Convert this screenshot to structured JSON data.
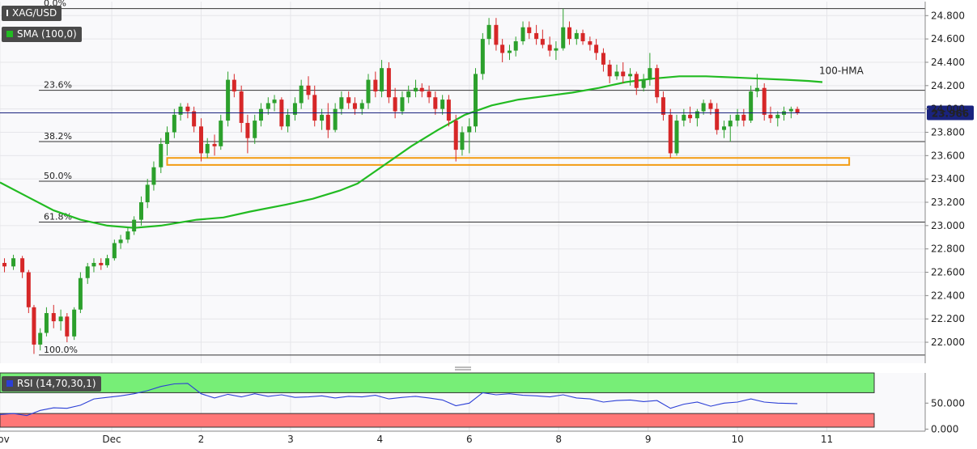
{
  "legend": {
    "symbol": "XAG/USD",
    "sma_label": "SMA (100,0)",
    "rsi_label": "RSI (14,70,30,1)"
  },
  "colors": {
    "bull": "#2ca02c",
    "bear": "#d62728",
    "sma": "#22bb22",
    "rsi_line": "#2b3fd6",
    "overbought_zone": "#77ee77",
    "oversold_zone": "#ff7777",
    "support_box": "#f39c12",
    "price_line": "#1a237e",
    "price_badge": "#1a237e"
  },
  "chart_data": [
    {
      "type": "candlestick",
      "symbol": "XAG/USD",
      "yticks": [
        22.0,
        22.2,
        22.4,
        22.6,
        22.8,
        23.0,
        23.2,
        23.4,
        23.6,
        23.8,
        24.0,
        24.2,
        24.4,
        24.6,
        24.8
      ],
      "ytick_labels": [
        "22.000",
        "22.200",
        "22.400",
        "22.600",
        "22.800",
        "23.000",
        "23.200",
        "23.400",
        "23.600",
        "23.800",
        "24.000",
        "24.200",
        "24.400",
        "24.600",
        "24.800"
      ],
      "ylim": [
        21.82,
        24.92
      ],
      "xlim": [
        0.0,
        10.35
      ],
      "xticks": [
        {
          "x": 0.0,
          "label": "Nov"
        },
        {
          "x": 1.25,
          "label": "Dec"
        },
        {
          "x": 2.25,
          "label": "2"
        },
        {
          "x": 3.25,
          "label": "3"
        },
        {
          "x": 4.25,
          "label": "4"
        },
        {
          "x": 5.25,
          "label": "6"
        },
        {
          "x": 6.25,
          "label": "8"
        },
        {
          "x": 7.25,
          "label": "9"
        },
        {
          "x": 8.25,
          "label": "10"
        },
        {
          "x": 9.25,
          "label": "11"
        }
      ],
      "current_price": 23.966,
      "current_price_label": "23.966",
      "fibonacci": [
        {
          "label": "0.0%",
          "value": 24.86
        },
        {
          "label": "23.6%",
          "value": 24.16
        },
        {
          "label": "38.2%",
          "value": 23.72
        },
        {
          "label": "50.0%",
          "value": 23.38
        },
        {
          "label": "61.8%",
          "value": 23.03
        },
        {
          "label": "100.0%",
          "value": 21.89
        }
      ],
      "support_zone": {
        "x_start": 1.87,
        "x_end": 9.5,
        "low": 23.52,
        "high": 23.58
      },
      "sma": {
        "name": "100-HMA",
        "points": [
          [
            0.0,
            23.37
          ],
          [
            0.3,
            23.25
          ],
          [
            0.6,
            23.13
          ],
          [
            0.9,
            23.05
          ],
          [
            1.2,
            23.0
          ],
          [
            1.5,
            22.98
          ],
          [
            1.8,
            23.0
          ],
          [
            2.2,
            23.05
          ],
          [
            2.5,
            23.07
          ],
          [
            2.8,
            23.12
          ],
          [
            3.2,
            23.18
          ],
          [
            3.5,
            23.23
          ],
          [
            3.8,
            23.3
          ],
          [
            4.0,
            23.36
          ],
          [
            4.3,
            23.52
          ],
          [
            4.6,
            23.68
          ],
          [
            4.9,
            23.82
          ],
          [
            5.2,
            23.95
          ],
          [
            5.5,
            24.03
          ],
          [
            5.8,
            24.08
          ],
          [
            6.1,
            24.11
          ],
          [
            6.4,
            24.14
          ],
          [
            6.7,
            24.18
          ],
          [
            7.0,
            24.23
          ],
          [
            7.3,
            24.26
          ],
          [
            7.6,
            24.28
          ],
          [
            7.9,
            24.28
          ],
          [
            8.2,
            24.27
          ],
          [
            8.5,
            24.26
          ],
          [
            8.8,
            24.25
          ],
          [
            9.05,
            24.24
          ],
          [
            9.2,
            24.23
          ]
        ]
      },
      "ohlc": [
        [
          0.05,
          22.68,
          22.72,
          22.6,
          22.65
        ],
        [
          0.15,
          22.65,
          22.75,
          22.62,
          22.72
        ],
        [
          0.25,
          22.72,
          22.74,
          22.55,
          22.6
        ],
        [
          0.32,
          22.6,
          22.62,
          22.25,
          22.3
        ],
        [
          0.38,
          22.3,
          22.32,
          21.9,
          21.98
        ],
        [
          0.45,
          21.98,
          22.12,
          21.93,
          22.08
        ],
        [
          0.52,
          22.08,
          22.3,
          22.05,
          22.25
        ],
        [
          0.6,
          22.25,
          22.32,
          22.12,
          22.18
        ],
        [
          0.68,
          22.18,
          22.28,
          22.1,
          22.22
        ],
        [
          0.75,
          22.22,
          22.25,
          22.0,
          22.05
        ],
        [
          0.83,
          22.05,
          22.3,
          22.02,
          22.28
        ],
        [
          0.9,
          22.28,
          22.6,
          22.25,
          22.55
        ],
        [
          0.98,
          22.55,
          22.68,
          22.5,
          22.65
        ],
        [
          1.05,
          22.65,
          22.72,
          22.6,
          22.68
        ],
        [
          1.13,
          22.68,
          22.72,
          22.62,
          22.66
        ],
        [
          1.2,
          22.66,
          22.75,
          22.64,
          22.72
        ],
        [
          1.28,
          22.72,
          22.88,
          22.7,
          22.85
        ],
        [
          1.35,
          22.85,
          22.92,
          22.8,
          22.88
        ],
        [
          1.43,
          22.88,
          22.98,
          22.85,
          22.95
        ],
        [
          1.5,
          22.95,
          23.08,
          22.92,
          23.05
        ],
        [
          1.58,
          23.05,
          23.25,
          23.0,
          23.2
        ],
        [
          1.65,
          23.2,
          23.4,
          23.15,
          23.35
        ],
        [
          1.72,
          23.35,
          23.55,
          23.3,
          23.5
        ],
        [
          1.8,
          23.5,
          23.75,
          23.45,
          23.7
        ],
        [
          1.87,
          23.7,
          23.85,
          23.6,
          23.8
        ],
        [
          1.95,
          23.8,
          24.0,
          23.75,
          23.95
        ],
        [
          2.02,
          23.95,
          24.05,
          23.9,
          24.02
        ],
        [
          2.1,
          24.02,
          24.05,
          23.92,
          23.98
        ],
        [
          2.17,
          23.98,
          24.02,
          23.8,
          23.85
        ],
        [
          2.25,
          23.85,
          23.92,
          23.55,
          23.62
        ],
        [
          2.32,
          23.62,
          23.75,
          23.58,
          23.7
        ],
        [
          2.4,
          23.7,
          23.78,
          23.6,
          23.68
        ],
        [
          2.47,
          23.68,
          23.95,
          23.65,
          23.9
        ],
        [
          2.55,
          23.9,
          24.32,
          23.85,
          24.25
        ],
        [
          2.62,
          24.25,
          24.3,
          24.1,
          24.15
        ],
        [
          2.7,
          24.15,
          24.2,
          23.8,
          23.88
        ],
        [
          2.77,
          23.88,
          23.95,
          23.62,
          23.75
        ],
        [
          2.85,
          23.75,
          23.95,
          23.7,
          23.9
        ],
        [
          2.92,
          23.9,
          24.05,
          23.85,
          24.0
        ],
        [
          3.0,
          24.0,
          24.1,
          23.95,
          24.05
        ],
        [
          3.07,
          24.05,
          24.12,
          23.98,
          24.08
        ],
        [
          3.15,
          24.08,
          24.1,
          23.82,
          23.85
        ],
        [
          3.22,
          23.85,
          24.0,
          23.8,
          23.95
        ],
        [
          3.3,
          23.95,
          24.1,
          23.9,
          24.05
        ],
        [
          3.37,
          24.05,
          24.25,
          24.0,
          24.2
        ],
        [
          3.45,
          24.2,
          24.28,
          24.08,
          24.12
        ],
        [
          3.52,
          24.12,
          24.2,
          23.85,
          23.9
        ],
        [
          3.6,
          23.9,
          24.0,
          23.82,
          23.95
        ],
        [
          3.67,
          23.95,
          24.05,
          23.75,
          23.82
        ],
        [
          3.75,
          23.82,
          24.05,
          23.8,
          24.0
        ],
        [
          3.82,
          24.0,
          24.15,
          23.95,
          24.1
        ],
        [
          3.9,
          24.1,
          24.15,
          24.0,
          24.05
        ],
        [
          3.97,
          24.05,
          24.1,
          23.95,
          24.0
        ],
        [
          4.05,
          24.0,
          24.08,
          23.95,
          24.05
        ],
        [
          4.12,
          24.05,
          24.3,
          24.0,
          24.25
        ],
        [
          4.2,
          24.25,
          24.32,
          24.1,
          24.15
        ],
        [
          4.27,
          24.15,
          24.42,
          24.1,
          24.35
        ],
        [
          4.35,
          24.35,
          24.4,
          24.05,
          24.1
        ],
        [
          4.42,
          24.1,
          24.18,
          23.92,
          23.98
        ],
        [
          4.5,
          23.98,
          24.15,
          23.95,
          24.1
        ],
        [
          4.57,
          24.1,
          24.2,
          24.05,
          24.15
        ],
        [
          4.65,
          24.15,
          24.25,
          24.1,
          24.18
        ],
        [
          4.72,
          24.18,
          24.22,
          24.1,
          24.15
        ],
        [
          4.8,
          24.15,
          24.2,
          24.05,
          24.1
        ],
        [
          4.87,
          24.1,
          24.15,
          23.95,
          24.0
        ],
        [
          4.95,
          24.0,
          24.12,
          23.95,
          24.08
        ],
        [
          5.02,
          24.08,
          24.12,
          23.85,
          23.9
        ],
        [
          5.1,
          23.9,
          23.95,
          23.55,
          23.65
        ],
        [
          5.17,
          23.65,
          23.85,
          23.6,
          23.8
        ],
        [
          5.25,
          23.8,
          23.92,
          23.62,
          23.85
        ],
        [
          5.32,
          23.85,
          24.35,
          23.8,
          24.3
        ],
        [
          5.4,
          24.3,
          24.65,
          24.25,
          24.6
        ],
        [
          5.47,
          24.6,
          24.78,
          24.55,
          24.72
        ],
        [
          5.55,
          24.72,
          24.78,
          24.5,
          24.55
        ],
        [
          5.62,
          24.55,
          24.6,
          24.4,
          24.48
        ],
        [
          5.7,
          24.48,
          24.55,
          24.42,
          24.5
        ],
        [
          5.77,
          24.5,
          24.62,
          24.45,
          24.58
        ],
        [
          5.85,
          24.58,
          24.75,
          24.55,
          24.7
        ],
        [
          5.92,
          24.7,
          24.75,
          24.6,
          24.65
        ],
        [
          6.0,
          24.65,
          24.72,
          24.55,
          24.6
        ],
        [
          6.07,
          24.6,
          24.68,
          24.52,
          24.55
        ],
        [
          6.15,
          24.55,
          24.62,
          24.45,
          24.5
        ],
        [
          6.22,
          24.5,
          24.58,
          24.42,
          24.52
        ],
        [
          6.3,
          24.52,
          24.86,
          24.5,
          24.7
        ],
        [
          6.37,
          24.7,
          24.75,
          24.55,
          24.6
        ],
        [
          6.45,
          24.6,
          24.68,
          24.55,
          24.65
        ],
        [
          6.52,
          24.65,
          24.68,
          24.55,
          24.58
        ],
        [
          6.6,
          24.58,
          24.62,
          24.5,
          24.55
        ],
        [
          6.67,
          24.55,
          24.6,
          24.42,
          24.48
        ],
        [
          6.75,
          24.48,
          24.52,
          24.32,
          24.38
        ],
        [
          6.82,
          24.38,
          24.42,
          24.22,
          24.28
        ],
        [
          6.9,
          24.28,
          24.38,
          24.25,
          24.32
        ],
        [
          6.97,
          24.32,
          24.4,
          24.22,
          24.28
        ],
        [
          7.05,
          24.28,
          24.35,
          24.2,
          24.3
        ],
        [
          7.12,
          24.3,
          24.32,
          24.12,
          24.18
        ],
        [
          7.2,
          24.18,
          24.3,
          24.15,
          24.25
        ],
        [
          7.27,
          24.25,
          24.48,
          24.2,
          24.35
        ],
        [
          7.35,
          24.35,
          24.38,
          24.05,
          24.1
        ],
        [
          7.42,
          24.1,
          24.15,
          23.9,
          23.95
        ],
        [
          7.5,
          23.95,
          24.0,
          23.58,
          23.62
        ],
        [
          7.57,
          23.62,
          23.95,
          23.6,
          23.9
        ],
        [
          7.65,
          23.9,
          24.0,
          23.85,
          23.95
        ],
        [
          7.72,
          23.95,
          24.02,
          23.88,
          23.92
        ],
        [
          7.8,
          23.92,
          24.0,
          23.85,
          23.98
        ],
        [
          7.87,
          23.98,
          24.08,
          23.95,
          24.05
        ],
        [
          7.95,
          24.05,
          24.08,
          23.95,
          24.0
        ],
        [
          8.02,
          24.0,
          24.05,
          23.78,
          23.82
        ],
        [
          8.1,
          23.82,
          23.9,
          23.75,
          23.85
        ],
        [
          8.17,
          23.85,
          23.95,
          23.72,
          23.9
        ],
        [
          8.25,
          23.9,
          24.0,
          23.85,
          23.95
        ],
        [
          8.32,
          23.95,
          24.0,
          23.85,
          23.9
        ],
        [
          8.4,
          23.9,
          24.2,
          23.88,
          24.15
        ],
        [
          8.47,
          24.15,
          24.3,
          24.1,
          24.18
        ],
        [
          8.55,
          24.18,
          24.22,
          23.9,
          23.95
        ],
        [
          8.62,
          23.95,
          24.02,
          23.88,
          23.92
        ],
        [
          8.7,
          23.92,
          23.98,
          23.85,
          23.95
        ],
        [
          8.77,
          23.95,
          24.02,
          23.9,
          23.98
        ],
        [
          8.85,
          23.98,
          24.02,
          23.92,
          24.0
        ],
        [
          8.92,
          24.0,
          24.02,
          23.95,
          23.97
        ]
      ]
    },
    {
      "type": "line",
      "name": "RSI (14,70,30,1)",
      "yticks": [
        0.0,
        50.0
      ],
      "ytick_labels": [
        "0.000",
        "50.000"
      ],
      "ylim": [
        -4,
        108
      ],
      "overbought": 70,
      "oversold": 30,
      "x": [
        0.0,
        0.15,
        0.3,
        0.45,
        0.6,
        0.75,
        0.9,
        1.05,
        1.2,
        1.35,
        1.5,
        1.65,
        1.8,
        1.95,
        2.1,
        2.25,
        2.4,
        2.55,
        2.7,
        2.85,
        3.0,
        3.15,
        3.3,
        3.45,
        3.6,
        3.75,
        3.9,
        4.05,
        4.2,
        4.35,
        4.5,
        4.65,
        4.8,
        4.95,
        5.1,
        5.25,
        5.4,
        5.55,
        5.7,
        5.85,
        6.0,
        6.15,
        6.3,
        6.45,
        6.6,
        6.75,
        6.9,
        7.05,
        7.2,
        7.35,
        7.5,
        7.65,
        7.8,
        7.95,
        8.1,
        8.25,
        8.4,
        8.55,
        8.7,
        8.92
      ],
      "values": [
        28,
        30,
        26,
        36,
        41,
        40,
        46,
        58,
        61,
        64,
        68,
        74,
        82,
        87,
        88,
        68,
        60,
        67,
        62,
        68,
        63,
        66,
        61,
        62,
        64,
        60,
        63,
        62,
        65,
        58,
        61,
        63,
        60,
        56,
        45,
        50,
        70,
        66,
        68,
        65,
        64,
        62,
        66,
        60,
        58,
        52,
        55,
        56,
        53,
        55,
        40,
        48,
        52,
        44,
        50,
        52,
        58,
        52,
        50,
        49
      ]
    }
  ]
}
